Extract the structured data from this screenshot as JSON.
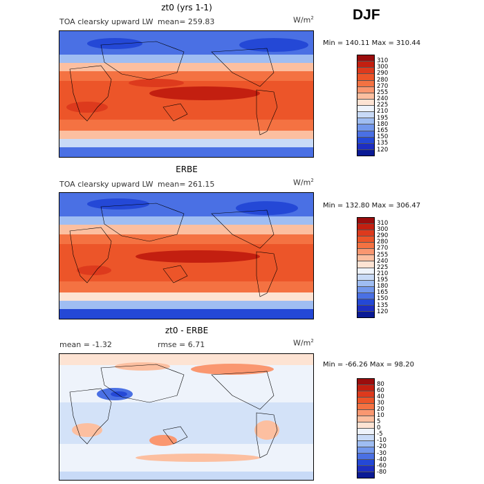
{
  "season": "DJF",
  "units_base": "W/m",
  "units_exp": "2",
  "panels": [
    {
      "title": "zt0 (yrs 1-1)",
      "left_label": "TOA clearsky upward LW",
      "stat_label": "mean= 259.83",
      "minmax": "Min = 140.11  Max = 310.44",
      "colorbar_labels": [
        "310",
        "300",
        "290",
        "280",
        "270",
        "255",
        "240",
        "225",
        "210",
        "195",
        "180",
        "165",
        "150",
        "135",
        "120"
      ],
      "colorbar_colors": [
        "#9b0d0d",
        "#c31f10",
        "#dd3a1d",
        "#ec5529",
        "#f47242",
        "#fa9770",
        "#fcbfa0",
        "#fde3d3",
        "#eef3fb",
        "#c8daf7",
        "#9fbdf2",
        "#7297ec",
        "#4a70e4",
        "#2448d6",
        "#1d2ec1",
        "#0a1a95"
      ]
    },
    {
      "title": "ERBE",
      "left_label": "TOA clearsky upward LW",
      "stat_label": "mean= 261.15",
      "minmax": "Min = 132.80  Max = 306.47",
      "colorbar_labels": [
        "310",
        "300",
        "290",
        "280",
        "270",
        "255",
        "240",
        "225",
        "210",
        "195",
        "180",
        "165",
        "150",
        "135",
        "120"
      ],
      "colorbar_colors": [
        "#9b0d0d",
        "#c31f10",
        "#dd3a1d",
        "#ec5529",
        "#f47242",
        "#fa9770",
        "#fcbfa0",
        "#fde3d3",
        "#eef3fb",
        "#c8daf7",
        "#9fbdf2",
        "#7297ec",
        "#4a70e4",
        "#2448d6",
        "#1d2ec1",
        "#0a1a95"
      ]
    },
    {
      "title": "zt0 - ERBE",
      "left_label": "mean =   -1.32",
      "stat_label": "rmse =    6.71",
      "minmax": "Min = -66.26  Max =  98.20",
      "colorbar_labels": [
        "80",
        "60",
        "40",
        "30",
        "20",
        "10",
        "5",
        "0",
        "-5",
        "-10",
        "-20",
        "-30",
        "-40",
        "-60",
        "-80"
      ],
      "colorbar_colors": [
        "#9b0d0d",
        "#c31f10",
        "#dd3a1d",
        "#ec5529",
        "#f47242",
        "#fa9770",
        "#fcbfa0",
        "#fde3d3",
        "#eef3fb",
        "#c8daf7",
        "#9fbdf2",
        "#7297ec",
        "#4a70e4",
        "#2448d6",
        "#1d2ec1",
        "#0a1a95"
      ]
    }
  ],
  "chart_data": [
    {
      "type": "heatmap",
      "title": "zt0 (yrs 1-1)",
      "subtitle": "TOA clearsky upward LW",
      "mean": 259.83,
      "min": 140.11,
      "max": 310.44,
      "units": "W/m2",
      "levels": [
        120,
        135,
        150,
        165,
        180,
        195,
        210,
        225,
        240,
        255,
        270,
        280,
        290,
        300,
        310
      ]
    },
    {
      "type": "heatmap",
      "title": "ERBE",
      "subtitle": "TOA clearsky upward LW",
      "mean": 261.15,
      "min": 132.8,
      "max": 306.47,
      "units": "W/m2",
      "levels": [
        120,
        135,
        150,
        165,
        180,
        195,
        210,
        225,
        240,
        255,
        270,
        280,
        290,
        300,
        310
      ]
    },
    {
      "type": "heatmap",
      "title": "zt0 - ERBE",
      "mean": -1.32,
      "rmse": 6.71,
      "min": -66.26,
      "max": 98.2,
      "units": "W/m2",
      "levels": [
        -80,
        -60,
        -40,
        -30,
        -20,
        -10,
        -5,
        0,
        5,
        10,
        20,
        30,
        40,
        60,
        80
      ]
    }
  ]
}
